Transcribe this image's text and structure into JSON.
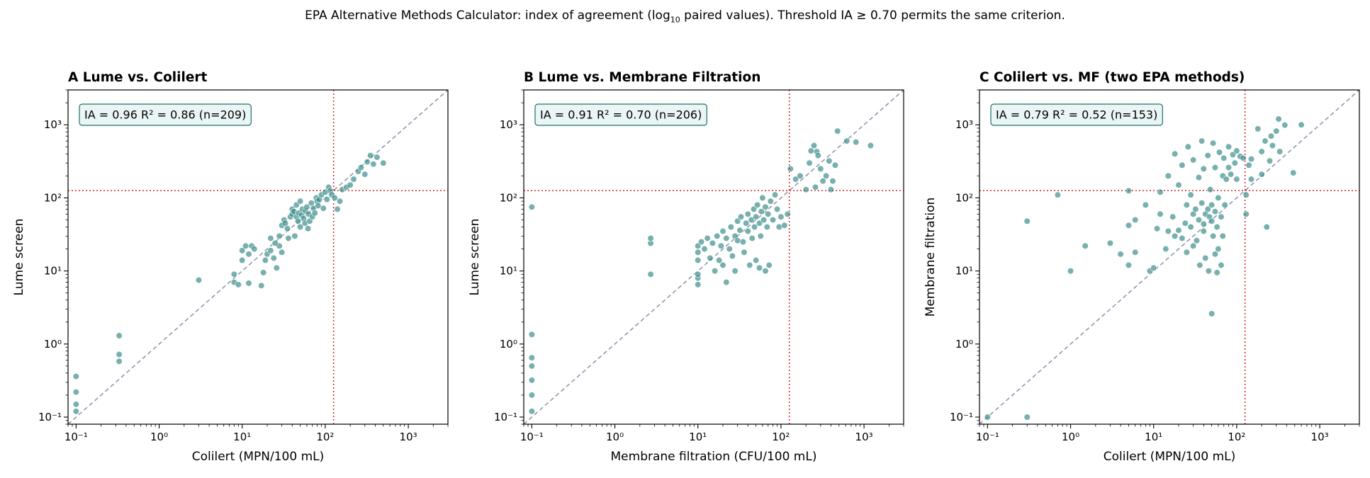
{
  "title": {
    "prefix": "EPA Alternative Methods Calculator: index of agreement (log",
    "subscript": "10",
    "suffix": " paired values). Threshold IA ≥ 0.70 permits the same criterion."
  },
  "colors": {
    "points": "#2e8583",
    "point_edge": "#ffffff",
    "identity_line": "#8f98b0",
    "threshold_line": "#d62728",
    "stats_box_fill": "#eaf6f5",
    "stats_box_edge": "#1f6f6b"
  },
  "chart_data": [
    {
      "type": "scatter",
      "panel": "A",
      "title": "A  Lume vs. Colilert",
      "xlabel": "Colilert (MPN/100 mL)",
      "ylabel": "Lume screen",
      "xscale": "log",
      "yscale": "log",
      "xlim": [
        0.08,
        3000
      ],
      "ylim": [
        0.08,
        3000
      ],
      "xticks": [
        {
          "value": 0.1,
          "label": "10⁻¹"
        },
        {
          "value": 1,
          "label": "10⁰"
        },
        {
          "value": 10,
          "label": "10¹"
        },
        {
          "value": 100,
          "label": "10²"
        },
        {
          "value": 1000,
          "label": "10³"
        }
      ],
      "yticks": [
        {
          "value": 0.1,
          "label": "10⁻¹"
        },
        {
          "value": 1,
          "label": "10⁰"
        },
        {
          "value": 10,
          "label": "10¹"
        },
        {
          "value": 100,
          "label": "10²"
        },
        {
          "value": 1000,
          "label": "10³"
        }
      ],
      "identity_line": true,
      "threshold": 126,
      "stats": "IA = 0.96   R² = 0.86   (n=209)",
      "points": [
        [
          0.1,
          0.36
        ],
        [
          0.1,
          0.22
        ],
        [
          0.1,
          0.15
        ],
        [
          0.1,
          0.12
        ],
        [
          0.33,
          1.3
        ],
        [
          0.33,
          0.72
        ],
        [
          0.33,
          0.58
        ],
        [
          3,
          7.5
        ],
        [
          8,
          7
        ],
        [
          8,
          9
        ],
        [
          9,
          6.5
        ],
        [
          10,
          14
        ],
        [
          10,
          19
        ],
        [
          11,
          22
        ],
        [
          12,
          17
        ],
        [
          13,
          22
        ],
        [
          14,
          20
        ],
        [
          12,
          6.8
        ],
        [
          17,
          6.3
        ],
        [
          18,
          9.5
        ],
        [
          19,
          14
        ],
        [
          20,
          17
        ],
        [
          22,
          19
        ],
        [
          24,
          15
        ],
        [
          26,
          11
        ],
        [
          28,
          22
        ],
        [
          22,
          28
        ],
        [
          25,
          24
        ],
        [
          28,
          30
        ],
        [
          30,
          18
        ],
        [
          30,
          42
        ],
        [
          32,
          50
        ],
        [
          33,
          45
        ],
        [
          35,
          38
        ],
        [
          36,
          28
        ],
        [
          38,
          55
        ],
        [
          40,
          60
        ],
        [
          40,
          70
        ],
        [
          42,
          65
        ],
        [
          43,
          30
        ],
        [
          45,
          55
        ],
        [
          45,
          80
        ],
        [
          47,
          48
        ],
        [
          48,
          62
        ],
        [
          50,
          40
        ],
        [
          50,
          90
        ],
        [
          52,
          58
        ],
        [
          53,
          70
        ],
        [
          55,
          52
        ],
        [
          57,
          45
        ],
        [
          58,
          66
        ],
        [
          60,
          75
        ],
        [
          62,
          38
        ],
        [
          63,
          60
        ],
        [
          65,
          48
        ],
        [
          68,
          85
        ],
        [
          70,
          55
        ],
        [
          72,
          72
        ],
        [
          75,
          62
        ],
        [
          78,
          100
        ],
        [
          80,
          90
        ],
        [
          82,
          78
        ],
        [
          85,
          95
        ],
        [
          90,
          110
        ],
        [
          95,
          72
        ],
        [
          100,
          120
        ],
        [
          105,
          95
        ],
        [
          110,
          140
        ],
        [
          115,
          125
        ],
        [
          120,
          110
        ],
        [
          130,
          100
        ],
        [
          140,
          70
        ],
        [
          150,
          90
        ],
        [
          160,
          130
        ],
        [
          180,
          140
        ],
        [
          200,
          150
        ],
        [
          220,
          180
        ],
        [
          250,
          230
        ],
        [
          270,
          260
        ],
        [
          300,
          210
        ],
        [
          320,
          310
        ],
        [
          350,
          380
        ],
        [
          380,
          290
        ],
        [
          420,
          360
        ],
        [
          500,
          300
        ]
      ]
    },
    {
      "type": "scatter",
      "panel": "B",
      "title": "B  Lume vs. Membrane Filtration",
      "xlabel": "Membrane filtration (CFU/100 mL)",
      "ylabel": "Lume screen",
      "xscale": "log",
      "yscale": "log",
      "xlim": [
        0.08,
        3000
      ],
      "ylim": [
        0.08,
        3000
      ],
      "xticks": [
        {
          "value": 0.1,
          "label": "10⁻¹"
        },
        {
          "value": 1,
          "label": "10⁰"
        },
        {
          "value": 10,
          "label": "10¹"
        },
        {
          "value": 100,
          "label": "10²"
        },
        {
          "value": 1000,
          "label": "10³"
        }
      ],
      "yticks": [
        {
          "value": 0.1,
          "label": "10⁻¹"
        },
        {
          "value": 1,
          "label": "10⁰"
        },
        {
          "value": 10,
          "label": "10¹"
        },
        {
          "value": 100,
          "label": "10²"
        },
        {
          "value": 1000,
          "label": "10³"
        }
      ],
      "identity_line": true,
      "threshold": 126,
      "stats": "IA = 0.91   R² = 0.70   (n=206)",
      "points": [
        [
          0.1,
          75
        ],
        [
          0.1,
          1.35
        ],
        [
          0.1,
          0.65
        ],
        [
          0.1,
          0.5
        ],
        [
          0.1,
          0.32
        ],
        [
          0.1,
          0.2
        ],
        [
          0.1,
          0.12
        ],
        [
          2.7,
          9
        ],
        [
          2.7,
          24
        ],
        [
          2.7,
          28
        ],
        [
          10,
          6.5
        ],
        [
          10,
          8
        ],
        [
          10,
          9
        ],
        [
          10,
          14
        ],
        [
          10,
          18
        ],
        [
          10,
          22
        ],
        [
          11,
          25
        ],
        [
          12,
          20
        ],
        [
          13,
          28
        ],
        [
          14,
          15
        ],
        [
          15,
          24
        ],
        [
          16,
          10
        ],
        [
          17,
          30
        ],
        [
          18,
          14
        ],
        [
          19,
          22
        ],
        [
          20,
          35
        ],
        [
          20,
          12
        ],
        [
          22,
          28
        ],
        [
          22,
          7
        ],
        [
          24,
          20
        ],
        [
          25,
          40
        ],
        [
          26,
          16
        ],
        [
          28,
          30
        ],
        [
          28,
          10
        ],
        [
          30,
          48
        ],
        [
          30,
          26
        ],
        [
          32,
          36
        ],
        [
          33,
          55
        ],
        [
          35,
          25
        ],
        [
          36,
          18
        ],
        [
          38,
          45
        ],
        [
          40,
          60
        ],
        [
          40,
          35
        ],
        [
          42,
          12
        ],
        [
          44,
          50
        ],
        [
          45,
          28
        ],
        [
          47,
          70
        ],
        [
          48,
          40
        ],
        [
          50,
          14
        ],
        [
          50,
          55
        ],
        [
          52,
          80
        ],
        [
          55,
          45
        ],
        [
          55,
          11
        ],
        [
          57,
          30
        ],
        [
          58,
          65
        ],
        [
          60,
          100
        ],
        [
          62,
          50
        ],
        [
          65,
          10
        ],
        [
          65,
          75
        ],
        [
          68,
          40
        ],
        [
          70,
          60
        ],
        [
          72,
          12
        ],
        [
          75,
          90
        ],
        [
          80,
          50
        ],
        [
          85,
          110
        ],
        [
          90,
          70
        ],
        [
          95,
          40
        ],
        [
          100,
          55
        ],
        [
          110,
          42
        ],
        [
          120,
          60
        ],
        [
          130,
          250
        ],
        [
          150,
          180
        ],
        [
          170,
          200
        ],
        [
          200,
          130
        ],
        [
          220,
          300
        ],
        [
          230,
          440
        ],
        [
          250,
          520
        ],
        [
          260,
          140
        ],
        [
          270,
          430
        ],
        [
          280,
          380
        ],
        [
          300,
          250
        ],
        [
          320,
          170
        ],
        [
          350,
          200
        ],
        [
          380,
          320
        ],
        [
          400,
          130
        ],
        [
          420,
          170
        ],
        [
          450,
          280
        ],
        [
          480,
          820
        ],
        [
          620,
          600
        ],
        [
          800,
          580
        ],
        [
          1200,
          520
        ]
      ]
    },
    {
      "type": "scatter",
      "panel": "C",
      "title": "C  Colilert vs. MF (two EPA methods)",
      "xlabel": "Colilert (MPN/100 mL)",
      "ylabel": "Membrane filtration",
      "xscale": "log",
      "yscale": "log",
      "xlim": [
        0.08,
        3000
      ],
      "ylim": [
        0.08,
        3000
      ],
      "xticks": [
        {
          "value": 0.1,
          "label": "10⁻¹"
        },
        {
          "value": 1,
          "label": "10⁰"
        },
        {
          "value": 10,
          "label": "10¹"
        },
        {
          "value": 100,
          "label": "10²"
        },
        {
          "value": 1000,
          "label": "10³"
        }
      ],
      "yticks": [
        {
          "value": 0.1,
          "label": "10⁻¹"
        },
        {
          "value": 1,
          "label": "10⁰"
        },
        {
          "value": 10,
          "label": "10¹"
        },
        {
          "value": 100,
          "label": "10²"
        },
        {
          "value": 1000,
          "label": "10³"
        }
      ],
      "identity_line": true,
      "threshold": 126,
      "stats": "IA = 0.79   R² = 0.52   (n=153)",
      "points": [
        [
          0.1,
          0.1
        ],
        [
          0.3,
          0.1
        ],
        [
          0.3,
          48
        ],
        [
          0.7,
          110
        ],
        [
          1,
          10
        ],
        [
          1.5,
          22
        ],
        [
          3,
          24
        ],
        [
          4,
          17
        ],
        [
          5,
          12
        ],
        [
          5,
          42
        ],
        [
          5,
          125
        ],
        [
          6,
          18
        ],
        [
          6,
          50
        ],
        [
          8,
          80
        ],
        [
          9,
          10
        ],
        [
          10,
          11
        ],
        [
          11,
          38
        ],
        [
          12,
          60
        ],
        [
          12,
          120
        ],
        [
          14,
          20
        ],
        [
          15,
          35
        ],
        [
          15,
          200
        ],
        [
          17,
          55
        ],
        [
          18,
          30
        ],
        [
          18,
          400
        ],
        [
          20,
          36
        ],
        [
          20,
          150
        ],
        [
          22,
          28
        ],
        [
          22,
          280
        ],
        [
          24,
          45
        ],
        [
          25,
          80
        ],
        [
          25,
          18
        ],
        [
          26,
          500
        ],
        [
          28,
          110
        ],
        [
          28,
          40
        ],
        [
          30,
          22
        ],
        [
          30,
          60
        ],
        [
          30,
          330
        ],
        [
          32,
          70
        ],
        [
          33,
          26
        ],
        [
          35,
          50
        ],
        [
          35,
          190
        ],
        [
          36,
          12
        ],
        [
          38,
          85
        ],
        [
          38,
          600
        ],
        [
          40,
          35
        ],
        [
          40,
          44
        ],
        [
          40,
          250
        ],
        [
          42,
          60
        ],
        [
          42,
          15
        ],
        [
          45,
          70
        ],
        [
          45,
          380
        ],
        [
          46,
          10
        ],
        [
          47,
          55
        ],
        [
          48,
          130
        ],
        [
          50,
          2.6
        ],
        [
          50,
          48
        ],
        [
          50,
          80
        ],
        [
          52,
          30
        ],
        [
          52,
          560
        ],
        [
          55,
          17
        ],
        [
          55,
          65
        ],
        [
          55,
          260
        ],
        [
          58,
          9.5
        ],
        [
          58,
          40
        ],
        [
          60,
          100
        ],
        [
          60,
          20
        ],
        [
          62,
          420
        ],
        [
          65,
          55
        ],
        [
          65,
          12
        ],
        [
          68,
          30
        ],
        [
          68,
          200
        ],
        [
          70,
          350
        ],
        [
          72,
          80
        ],
        [
          75,
          180
        ],
        [
          80,
          500
        ],
        [
          80,
          260
        ],
        [
          85,
          210
        ],
        [
          90,
          390
        ],
        [
          95,
          300
        ],
        [
          100,
          180
        ],
        [
          100,
          440
        ],
        [
          110,
          370
        ],
        [
          120,
          350
        ],
        [
          130,
          60
        ],
        [
          130,
          110
        ],
        [
          140,
          280
        ],
        [
          150,
          340
        ],
        [
          150,
          180
        ],
        [
          180,
          880
        ],
        [
          200,
          210
        ],
        [
          200,
          430
        ],
        [
          220,
          600
        ],
        [
          230,
          40
        ],
        [
          250,
          320
        ],
        [
          260,
          700
        ],
        [
          270,
          520
        ],
        [
          300,
          820
        ],
        [
          320,
          1200
        ],
        [
          330,
          430
        ],
        [
          380,
          990
        ],
        [
          480,
          220
        ],
        [
          600,
          1000
        ]
      ]
    }
  ]
}
